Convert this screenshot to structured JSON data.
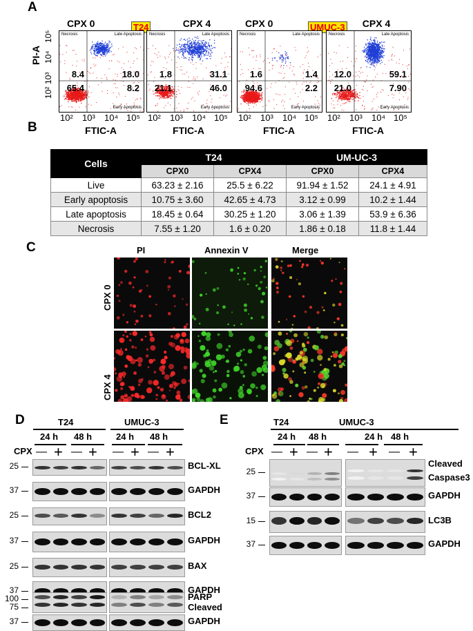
{
  "panelA": {
    "label": "A",
    "cell_line_1": "T24",
    "cell_line_2": "UMUC-3",
    "plots": [
      {
        "title": "CPX 0",
        "necrosis": "8.4",
        "late": "18.0",
        "live": "65.4",
        "early": "8.2",
        "show_y": true
      },
      {
        "title": "CPX 4",
        "necrosis": "1.8",
        "late": "31.1",
        "live": "21.1",
        "early": "46.0",
        "show_y": false
      },
      {
        "title": "CPX 0",
        "necrosis": "1.6",
        "late": "1.4",
        "live": "94.6",
        "early": "2.2",
        "show_y": false
      },
      {
        "title": "CPX 4",
        "necrosis": "12.0",
        "late": "59.1",
        "live": "21.0",
        "early": "7.90",
        "show_y": false
      }
    ],
    "q_necrosis": "Necrosis",
    "q_late": "Late Apoptosis",
    "q_early": "Early Apoptosis",
    "xlabel": "FTIC-A",
    "ylabel": "PI-A",
    "xticks": [
      "10²",
      "10³",
      "10⁴",
      "10⁵"
    ],
    "yticks": [
      "10²",
      "10³",
      "10⁴",
      "10⁵"
    ]
  },
  "panelB": {
    "label": "B",
    "header_cells": "Cells",
    "header_t24": "T24",
    "header_umuc": "UM-UC-3",
    "subheaders": [
      "CPX0",
      "CPX4",
      "CPX0",
      "CPX4"
    ],
    "rows": [
      {
        "name": "Live",
        "values": [
          "63.23 ± 2.16",
          "25.5 ± 6.22",
          "91.94 ± 1.52",
          "24.1 ± 4.91"
        ]
      },
      {
        "name": "Early apoptosis",
        "values": [
          "10.75 ± 3.60",
          "42.65 ± 4.73",
          "3.12 ± 0.99",
          "10.2 ± 1.44"
        ]
      },
      {
        "name": "Late apoptosis",
        "values": [
          "18.45 ± 0.64",
          "30.25 ± 1.20",
          "3.06 ± 1.39",
          "53.9 ± 6.36"
        ]
      },
      {
        "name": "Necrosis",
        "values": [
          "7.55 ± 1.20",
          "1.6 ± 0.20",
          "1.86 ± 0.18",
          "11.8 ± 1.44"
        ]
      }
    ]
  },
  "panelC": {
    "label": "C",
    "columns": [
      "PI",
      "Annexin V",
      "Merge"
    ],
    "rows": [
      "CPX 0",
      "CPX 4"
    ]
  },
  "panelD": {
    "label": "D",
    "cell_line_1": "T24",
    "cell_line_2": "UMUC-3",
    "time_24": "24 h",
    "time_48": "48 h",
    "cpx_label": "CPX",
    "signs": [
      "—",
      "+",
      "—",
      "+"
    ],
    "blots": [
      {
        "name": "BCL-XL",
        "mw": "25"
      },
      {
        "name": "GAPDH",
        "mw": "37"
      },
      {
        "name": "BCL2",
        "mw": "25"
      },
      {
        "name": "GAPDH",
        "mw": "37"
      },
      {
        "name": "BAX",
        "mw": "25"
      },
      {
        "name": "GAPDH",
        "mw": "37"
      },
      {
        "name": "PARP",
        "name2": "Cleaved",
        "mw": "100",
        "mw2": "75"
      },
      {
        "name": "GAPDH",
        "mw": "37"
      }
    ]
  },
  "panelE": {
    "label": "E",
    "cell_line_1": "T24",
    "cell_line_2": "UMUC-3",
    "time_24": "24 h",
    "time_48": "48 h",
    "cpx_label": "CPX",
    "signs": [
      "—",
      "+",
      "—",
      "+"
    ],
    "blots": [
      {
        "name": "Cleaved",
        "name2": "Caspase3",
        "mw": "25"
      },
      {
        "name": "GAPDH",
        "mw": "37"
      },
      {
        "name": "LC3B",
        "mw": "15"
      },
      {
        "name": "GAPDH",
        "mw": "37"
      }
    ]
  },
  "colors": {
    "dots_red": "#e81a1a",
    "dots_blue": "#1f3fd6",
    "highlight_bg": "#ffe600",
    "highlight_text": "#e00000",
    "pi_red": "#ff2a2a",
    "annexin_green": "#3fd42a"
  }
}
